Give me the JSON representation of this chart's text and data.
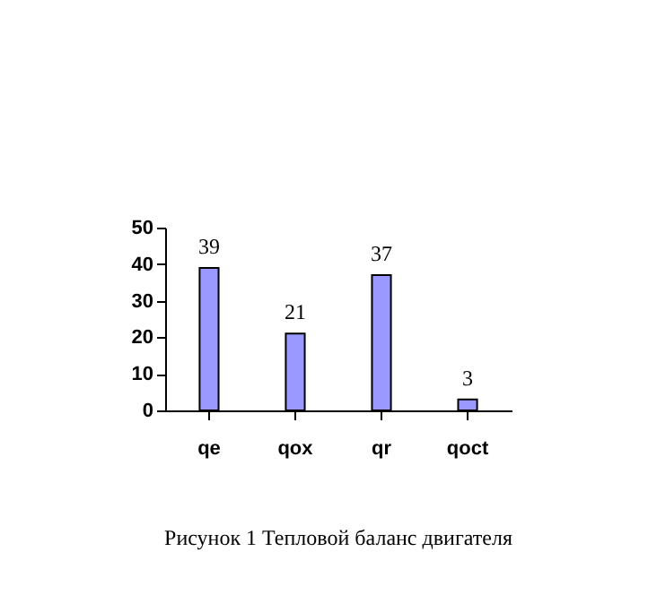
{
  "chart_data": {
    "type": "bar",
    "categories": [
      "qe",
      "qox",
      "qr",
      "qoct"
    ],
    "values": [
      39,
      21,
      37,
      3
    ],
    "color": "#9999ff",
    "ylim": [
      0,
      50
    ],
    "yticks": [
      0,
      10,
      20,
      30,
      40,
      50
    ],
    "data_labels": true,
    "grid": false,
    "annotations": [
      "Рисунок 1 Тепловой баланс двигателя"
    ]
  }
}
